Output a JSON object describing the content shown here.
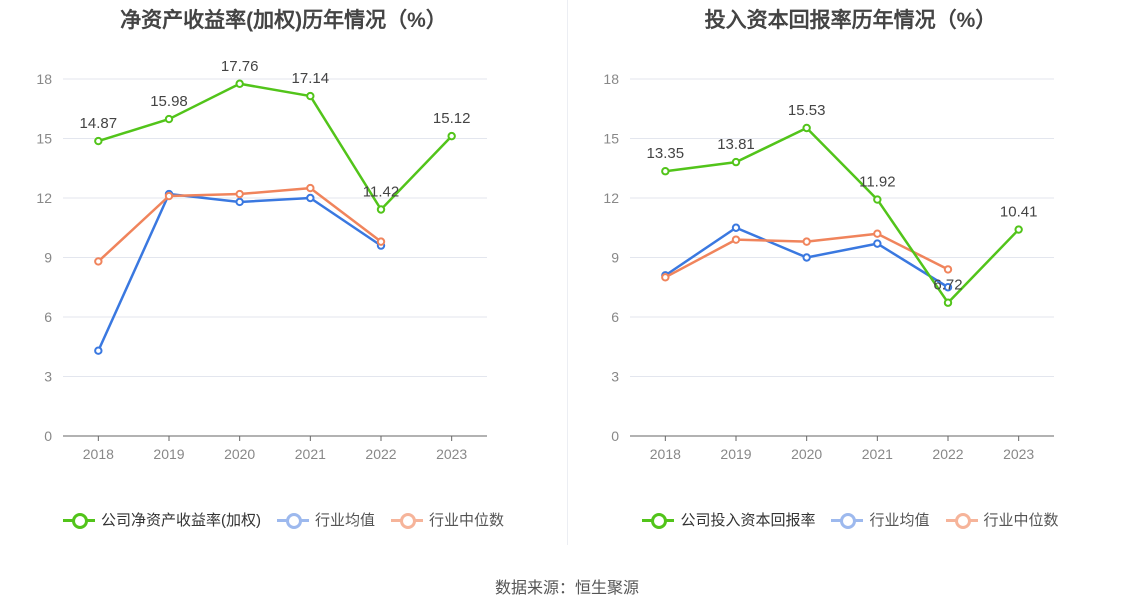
{
  "footer": "数据来源：恒生聚源",
  "chart_data": [
    {
      "type": "line",
      "title": "净资产收益率(加权)历年情况（%）",
      "categories": [
        "2018",
        "2019",
        "2020",
        "2021",
        "2022",
        "2023"
      ],
      "ylim": [
        0,
        18
      ],
      "yticks": [
        0,
        3,
        6,
        9,
        12,
        15,
        18
      ],
      "grid": true,
      "legend_position": "bottom",
      "series": [
        {
          "name": "公司净资产收益率(加权)",
          "color": "#52c41a",
          "values": [
            14.87,
            15.98,
            17.76,
            17.14,
            11.42,
            15.12
          ],
          "labels": [
            "14.87",
            "15.98",
            "17.76",
            "17.14",
            "11.42",
            "15.12"
          ]
        },
        {
          "name": "行业均值",
          "color": "#3a78e0",
          "values": [
            4.3,
            12.2,
            11.8,
            12.0,
            9.6,
            null
          ]
        },
        {
          "name": "行业中位数",
          "color": "#f0845c",
          "values": [
            8.8,
            12.1,
            12.2,
            12.5,
            9.8,
            null
          ]
        }
      ]
    },
    {
      "type": "line",
      "title": "投入资本回报率历年情况（%）",
      "categories": [
        "2018",
        "2019",
        "2020",
        "2021",
        "2022",
        "2023"
      ],
      "ylim": [
        0,
        18
      ],
      "yticks": [
        0,
        3,
        6,
        9,
        12,
        15,
        18
      ],
      "grid": true,
      "legend_position": "bottom",
      "series": [
        {
          "name": "公司投入资本回报率",
          "color": "#52c41a",
          "values": [
            13.35,
            13.81,
            15.53,
            11.92,
            6.72,
            10.41
          ],
          "labels": [
            "13.35",
            "13.81",
            "15.53",
            "11.92",
            "6.72",
            "10.41"
          ]
        },
        {
          "name": "行业均值",
          "color": "#3a78e0",
          "values": [
            8.1,
            10.5,
            9.0,
            9.7,
            7.5,
            null
          ]
        },
        {
          "name": "行业中位数",
          "color": "#f0845c",
          "values": [
            8.0,
            9.9,
            9.8,
            10.2,
            8.4,
            null
          ]
        }
      ]
    }
  ]
}
